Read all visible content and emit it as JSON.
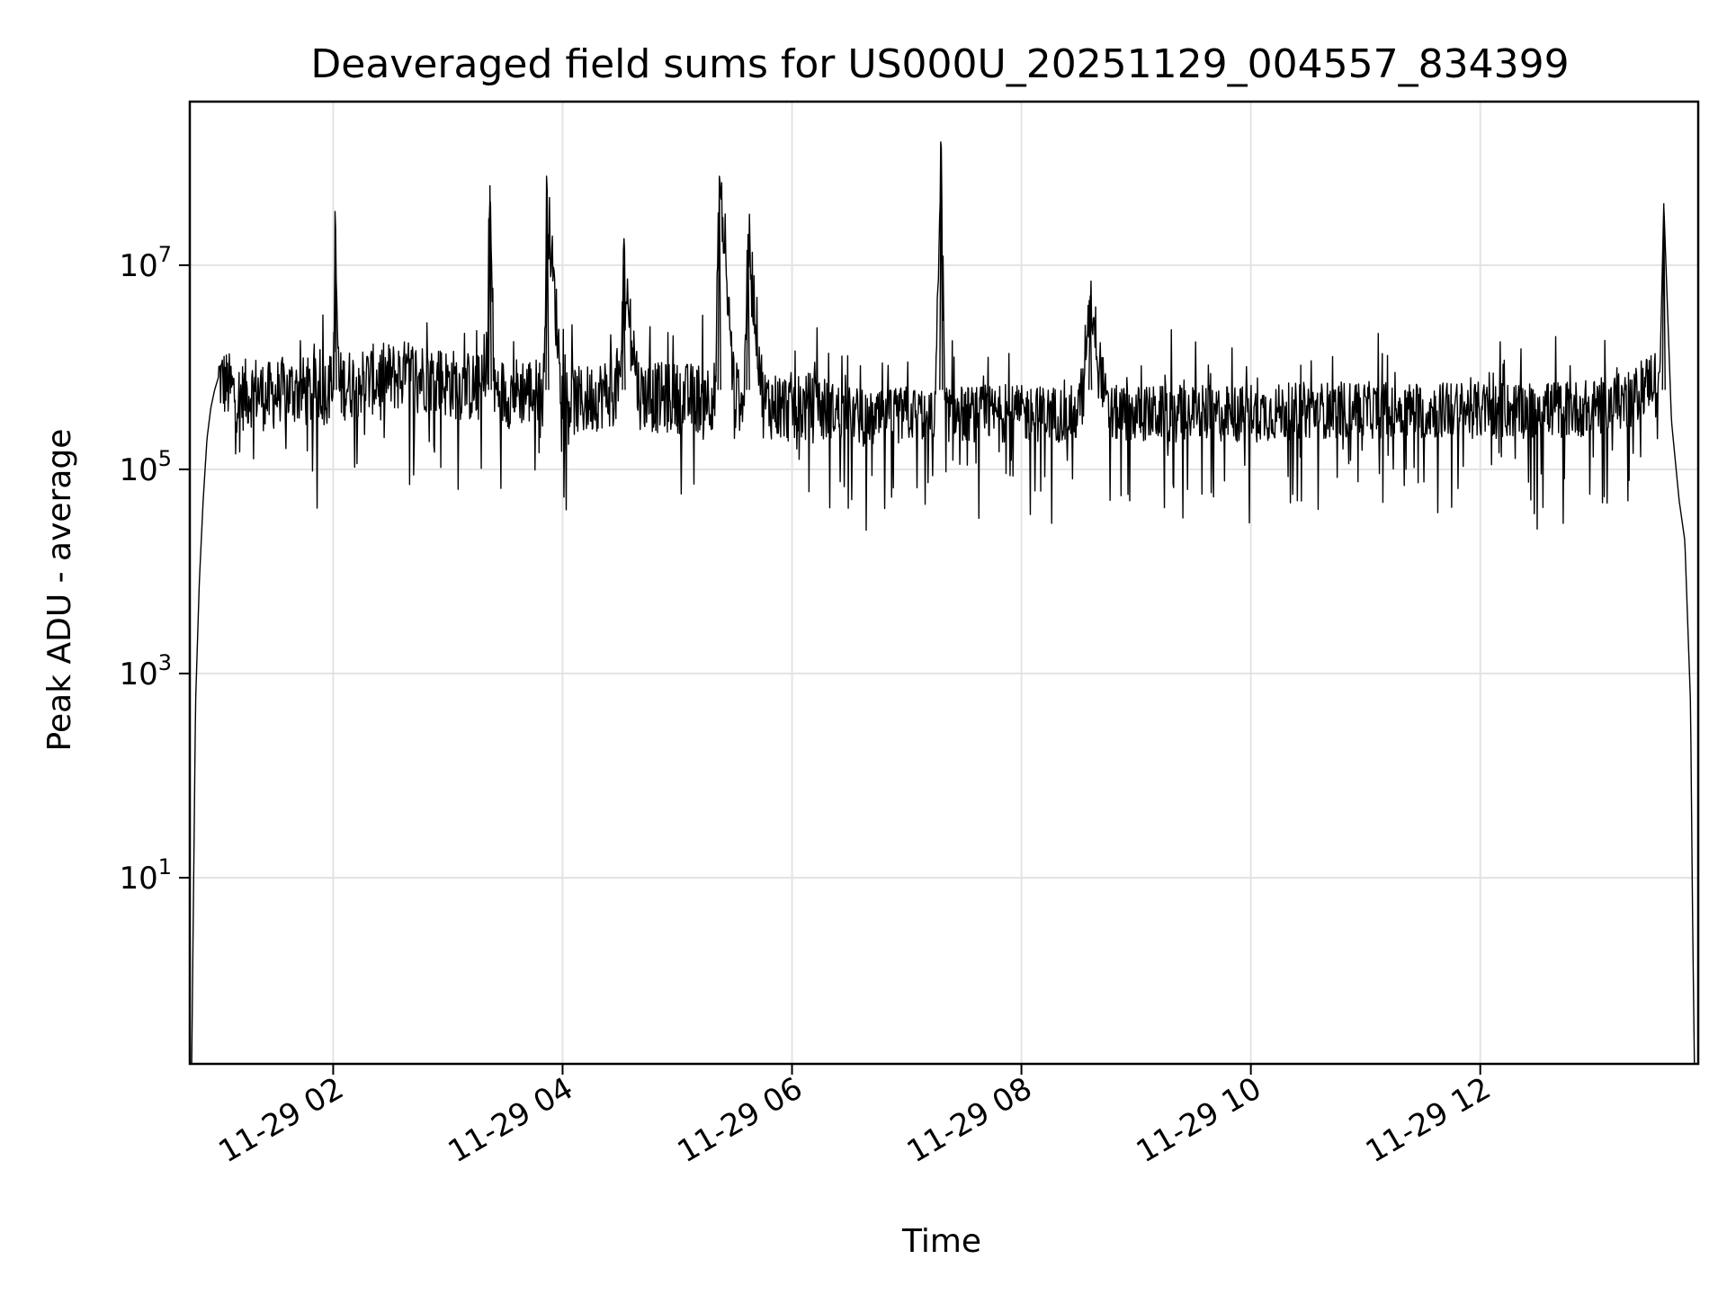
{
  "chart_data": {
    "type": "line",
    "title": "Deaveraged field sums for US000U_20251129_004557_834399",
    "xlabel": "Time",
    "ylabel": "Peak ADU - average",
    "yscale": "log",
    "grid": true,
    "line_color": "#000000",
    "x_range": [
      "11-29 00:45",
      "11-29 13:55"
    ],
    "y_range": [
      0.15,
      400000000
    ],
    "x_ticks": [
      {
        "value": "11-29 02",
        "hour": 2
      },
      {
        "value": "11-29 04",
        "hour": 4
      },
      {
        "value": "11-29 06",
        "hour": 6
      },
      {
        "value": "11-29 08",
        "hour": 8
      },
      {
        "value": "11-29 10",
        "hour": 10
      },
      {
        "value": "11-29 12",
        "hour": 12
      }
    ],
    "y_ticks": [
      {
        "base": "10",
        "exp": "1",
        "value": 10
      },
      {
        "base": "10",
        "exp": "3",
        "value": 1000
      },
      {
        "base": "10",
        "exp": "5",
        "value": 100000
      },
      {
        "base": "10",
        "exp": "7",
        "value": 10000000
      }
    ],
    "series": [
      {
        "x": [
          "11-29 00:46",
          "11-29 00:48",
          "11-29 00:50",
          "11-29 00:52",
          "11-29 00:54",
          "11-29 00:56",
          "11-29 00:58",
          "11-29 01:00",
          "11-29 01:03",
          "11-29 01:07",
          "11-29 01:10",
          "11-29 01:15",
          "11-29 01:20",
          "11-29 01:25",
          "11-29 01:30",
          "11-29 01:40",
          "11-29 01:50",
          "11-29 02:00",
          "11-29 02:01",
          "11-29 02:03",
          "11-29 02:10",
          "11-29 02:20",
          "11-29 02:30",
          "11-29 02:40",
          "11-29 02:50",
          "11-29 03:00",
          "11-29 03:10",
          "11-29 03:20",
          "11-29 03:22",
          "11-29 03:24",
          "11-29 03:30",
          "11-29 03:40",
          "11-29 03:50",
          "11-29 03:52",
          "11-29 04:00",
          "11-29 04:10",
          "11-29 04:20",
          "11-29 04:30",
          "11-29 04:32",
          "11-29 04:40",
          "11-29 04:50",
          "11-29 05:00",
          "11-29 05:10",
          "11-29 05:20",
          "11-29 05:22",
          "11-29 05:30",
          "11-29 05:35",
          "11-29 05:37",
          "11-29 05:45",
          "11-29 06:00",
          "11-29 06:15",
          "11-29 06:30",
          "11-29 06:45",
          "11-29 07:00",
          "11-29 07:15",
          "11-29 07:18",
          "11-29 07:20",
          "11-29 07:30",
          "11-29 07:45",
          "11-29 08:00",
          "11-29 08:15",
          "11-29 08:30",
          "11-29 08:36",
          "11-29 08:45",
          "11-29 09:00",
          "11-29 09:30",
          "11-29 10:00",
          "11-29 10:30",
          "11-29 11:00",
          "11-29 11:30",
          "11-29 12:00",
          "11-29 12:30",
          "11-29 13:00",
          "11-29 13:20",
          "11-29 13:30",
          "11-29 13:34",
          "11-29 13:36",
          "11-29 13:40",
          "11-29 13:44",
          "11-29 13:47",
          "11-29 13:50",
          "11-29 13:51",
          "11-29 13:52"
        ],
        "y": [
          0.15,
          500,
          8000,
          50000,
          200000,
          400000,
          600000,
          800000,
          700000,
          600000,
          500000,
          550000,
          600000,
          500000,
          550000,
          600000,
          550000,
          650000,
          20000000,
          650000,
          700000,
          750000,
          800000,
          850000,
          800000,
          700000,
          650000,
          600000,
          60000000,
          600000,
          550000,
          600000,
          550000,
          40000000,
          500000,
          450000,
          550000,
          600000,
          10000000,
          550000,
          500000,
          500000,
          500000,
          550000,
          70000000,
          500000,
          550000,
          20000000,
          450000,
          400000,
          400000,
          350000,
          300000,
          350000,
          350000,
          150000000,
          350000,
          350000,
          350000,
          350000,
          350000,
          350000,
          5000000,
          350000,
          350000,
          350000,
          350000,
          380000,
          380000,
          380000,
          380000,
          380000,
          400000,
          500000,
          800000,
          900000,
          40000000,
          300000,
          50000,
          20000,
          500,
          5,
          0.15
        ]
      }
    ]
  }
}
